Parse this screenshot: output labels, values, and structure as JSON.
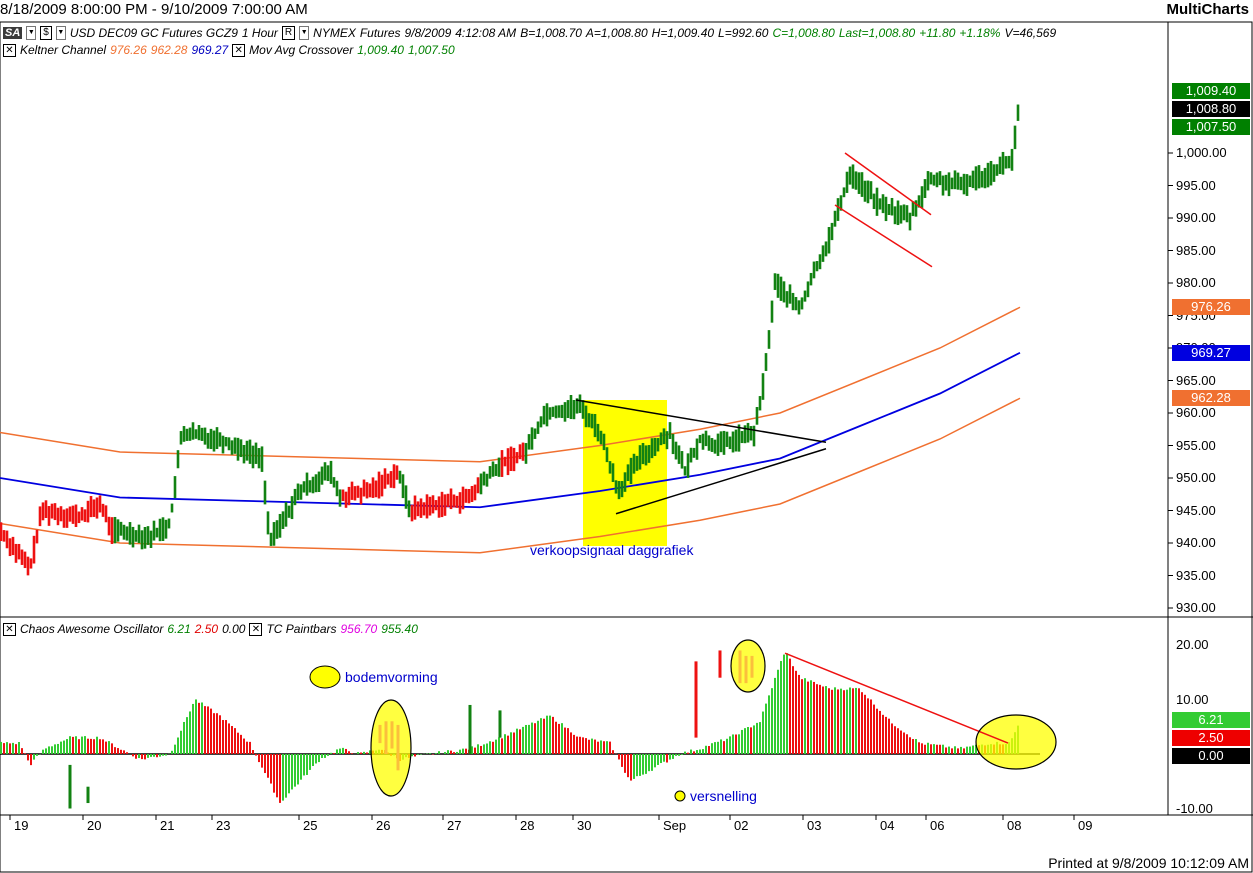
{
  "title_bar": {
    "date_range": "8/18/2009 8:00:00 PM - 9/10/2009 7:00:00 AM",
    "app_name": "MultiCharts"
  },
  "instrument_row": {
    "sa_label": "SA",
    "dollar_label": "$",
    "symbol": "USD DEC09 GC Futures GCZ9",
    "interval": "1 Hour",
    "r_label": "R",
    "exchange": "NYMEX",
    "kind": "Futures",
    "date": "9/8/2009",
    "time": "4:12:08 AM",
    "bid": "B=1,008.70",
    "ask": "A=1,008.80",
    "high": "H=1,009.40",
    "low": "L=992.60",
    "close": "C=1,008.80",
    "last": "Last=1,008.80",
    "change": "+11.80",
    "change_pct": "+1.18%",
    "volume": "V=46,569"
  },
  "indicator_row": {
    "keltner_name": "Keltner Channel",
    "keltner_upper": "976.26",
    "keltner_lower": "962.28",
    "keltner_mid": "969.27",
    "mac_name": "Mov Avg Crossover",
    "mac_v1": "1,009.40",
    "mac_v2": "1,007.50"
  },
  "osc_row": {
    "ao_name": "Chaos Awesome Oscillator",
    "ao_v1": "6.21",
    "ao_v2": "2.50",
    "ao_v3": "0.00",
    "tc_name": "TC Paintbars",
    "tc_v1": "956.70",
    "tc_v2": "955.40"
  },
  "price_axis": {
    "ticks": [
      "1,000.00",
      "995.00",
      "990.00",
      "985.00",
      "980.00",
      "975.00",
      "970.00",
      "965.00",
      "960.00",
      "955.00",
      "950.00",
      "945.00",
      "940.00",
      "935.00",
      "930.00"
    ],
    "boxes": [
      {
        "label": "1,009.40",
        "color": "#008000"
      },
      {
        "label": "1,008.80",
        "color": "#000000"
      },
      {
        "label": "1,007.50",
        "color": "#008000"
      },
      {
        "label": "976.26",
        "color": "#f07030"
      },
      {
        "label": "969.27",
        "color": "#0000e0"
      },
      {
        "label": "962.28",
        "color": "#f07030"
      }
    ]
  },
  "osc_axis": {
    "ticks": [
      "20.00",
      "10.00",
      "-10.00"
    ],
    "boxes": [
      {
        "label": "6.21",
        "color": "#33cc33"
      },
      {
        "label": "2.50",
        "color": "#ee0000"
      },
      {
        "label": "0.00",
        "color": "#000000"
      }
    ]
  },
  "date_axis": [
    "19",
    "20",
    "21",
    "23",
    "25",
    "26",
    "27",
    "28",
    "30",
    "Sep",
    "02",
    "03",
    "04",
    "06",
    "08",
    "09"
  ],
  "annotations": {
    "sell_signal": "verkoopsignaal daggrafiek",
    "bottoming": "bodemvorming",
    "acceleration": "versnelling"
  },
  "footer": {
    "printed": "Printed at 9/8/2009 10:12:09 AM"
  },
  "chart_data": {
    "type": "ohlc",
    "price_range": [
      930,
      1010
    ],
    "oscillator_range": [
      -10,
      20
    ],
    "series": [
      {
        "name": "Keltner Channel upper",
        "current": 976.26
      },
      {
        "name": "Keltner Channel middle",
        "current": 969.27
      },
      {
        "name": "Keltner Channel lower",
        "current": 962.28
      },
      {
        "name": "Chaos Awesome Oscillator",
        "current": 6.21
      }
    ]
  },
  "colors": {
    "bull": "#128212",
    "bear": "#ee1111",
    "keltner_outer": "#f07030",
    "keltner_mid": "#0000e0",
    "highlight": "#ffff00",
    "ao_up": "#33cc33",
    "ao_down": "#ee1111",
    "paint": "#ee00ee"
  }
}
